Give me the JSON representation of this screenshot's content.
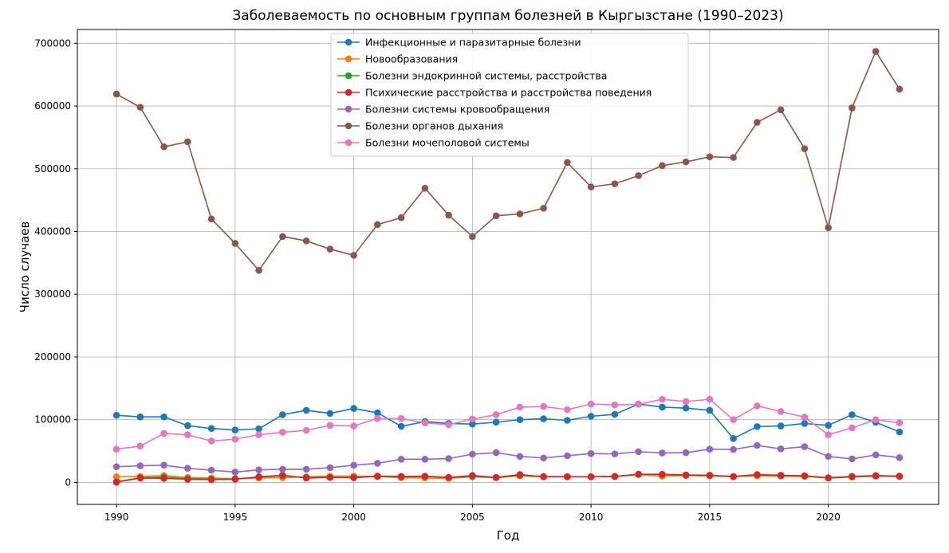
{
  "chart_data": {
    "type": "line",
    "title": "Заболеваемость по основным группам болезней в Кыргызстане (1990–2023)",
    "xlabel": "Год",
    "ylabel": "Число случаев",
    "xlim": [
      1988.35,
      2024.65
    ],
    "ylim": [
      -35000,
      722000
    ],
    "xticks": [
      1990,
      1995,
      2000,
      2005,
      2010,
      2015,
      2020
    ],
    "yticks": [
      0,
      100000,
      200000,
      300000,
      400000,
      500000,
      600000,
      700000
    ],
    "grid": true,
    "legend_position": "upper center",
    "marker": "circle",
    "x": [
      1990,
      1991,
      1992,
      1993,
      1994,
      1995,
      1996,
      1997,
      1998,
      1999,
      2000,
      2001,
      2002,
      2003,
      2004,
      2005,
      2006,
      2007,
      2008,
      2009,
      2010,
      2011,
      2012,
      2013,
      2014,
      2015,
      2016,
      2017,
      2018,
      2019,
      2020,
      2021,
      2022,
      2023
    ],
    "series": [
      {
        "name": "Инфекционные и паразитарные болезни",
        "color": "#1f77b4",
        "values": [
          107000,
          104500,
          104500,
          90500,
          86000,
          83500,
          85500,
          108000,
          115000,
          110000,
          118000,
          111000,
          89500,
          97000,
          94000,
          93000,
          96000,
          100000,
          101500,
          99000,
          105500,
          108500,
          125000,
          120000,
          118500,
          115000,
          70000,
          89000,
          90000,
          94000,
          91000,
          108000,
          96000,
          80500
        ]
      },
      {
        "name": "Новообразования",
        "color": "#ff7f0e",
        "values": [
          9000,
          9500,
          11000,
          8000,
          7000,
          6000,
          7000,
          7500,
          9000,
          10000,
          10000,
          9500,
          7500,
          7000,
          6500,
          9000,
          7500,
          10500,
          9000,
          9000,
          9000,
          9500,
          12500,
          10000,
          11000,
          10500,
          9500,
          10500,
          10000,
          9500,
          7000,
          8500,
          10000,
          9500
        ]
      },
      {
        "name": "Болезни эндокринной системы, расстройства",
        "color": "#2ca02c",
        "values": [
          1000,
          7500,
          8500,
          6000,
          5500,
          5500,
          8500,
          10500,
          8000,
          8000,
          8000,
          9500,
          9000,
          9500,
          8000,
          9500,
          8000,
          11500,
          9500,
          9000,
          9000,
          9500,
          13000,
          12500,
          11500,
          11000,
          9000,
          12000,
          11000,
          10500,
          7000,
          9000,
          10500,
          9500
        ]
      },
      {
        "name": "Психические расстройства и расстройства поведения",
        "color": "#d62728",
        "values": [
          500,
          7000,
          6500,
          5000,
          4500,
          5000,
          9000,
          11500,
          7000,
          8000,
          7500,
          10000,
          9500,
          10000,
          8000,
          11000,
          8000,
          12500,
          9000,
          9000,
          9000,
          9500,
          13000,
          13000,
          12000,
          11500,
          9500,
          12500,
          11500,
          10500,
          7500,
          9500,
          11000,
          10000
        ]
      },
      {
        "name": "Болезни системы кровообращения",
        "color": "#9467bd",
        "values": [
          25000,
          26500,
          27500,
          22500,
          19500,
          16500,
          20000,
          21000,
          21000,
          23500,
          27500,
          30500,
          37000,
          37000,
          38000,
          45000,
          47500,
          41500,
          39000,
          42500,
          46000,
          45500,
          49000,
          47000,
          47500,
          53000,
          52500,
          59000,
          53500,
          57000,
          41500,
          37500,
          44000,
          39500
        ]
      },
      {
        "name": "Болезни органов дыхания",
        "color": "#8c564b",
        "values": [
          619000,
          598000,
          535000,
          543000,
          420000,
          381000,
          338000,
          392000,
          385000,
          372000,
          362000,
          411000,
          422000,
          469000,
          426000,
          392000,
          425000,
          428000,
          437000,
          510000,
          471000,
          476000,
          489000,
          505000,
          511000,
          519000,
          518000,
          574000,
          594000,
          532000,
          406000,
          597000,
          687000,
          627000
        ]
      },
      {
        "name": "Болезни мочеполовой системы",
        "color": "#e377c2",
        "values": [
          53000,
          58000,
          78000,
          76000,
          66000,
          69000,
          76000,
          80000,
          83000,
          91000,
          90000,
          102000,
          102000,
          95000,
          92000,
          101000,
          108000,
          120000,
          121000,
          116000,
          125000,
          123500,
          124500,
          132500,
          129000,
          132500,
          100000,
          122000,
          113000,
          104000,
          76000,
          87000,
          100000,
          95000
        ]
      }
    ]
  }
}
